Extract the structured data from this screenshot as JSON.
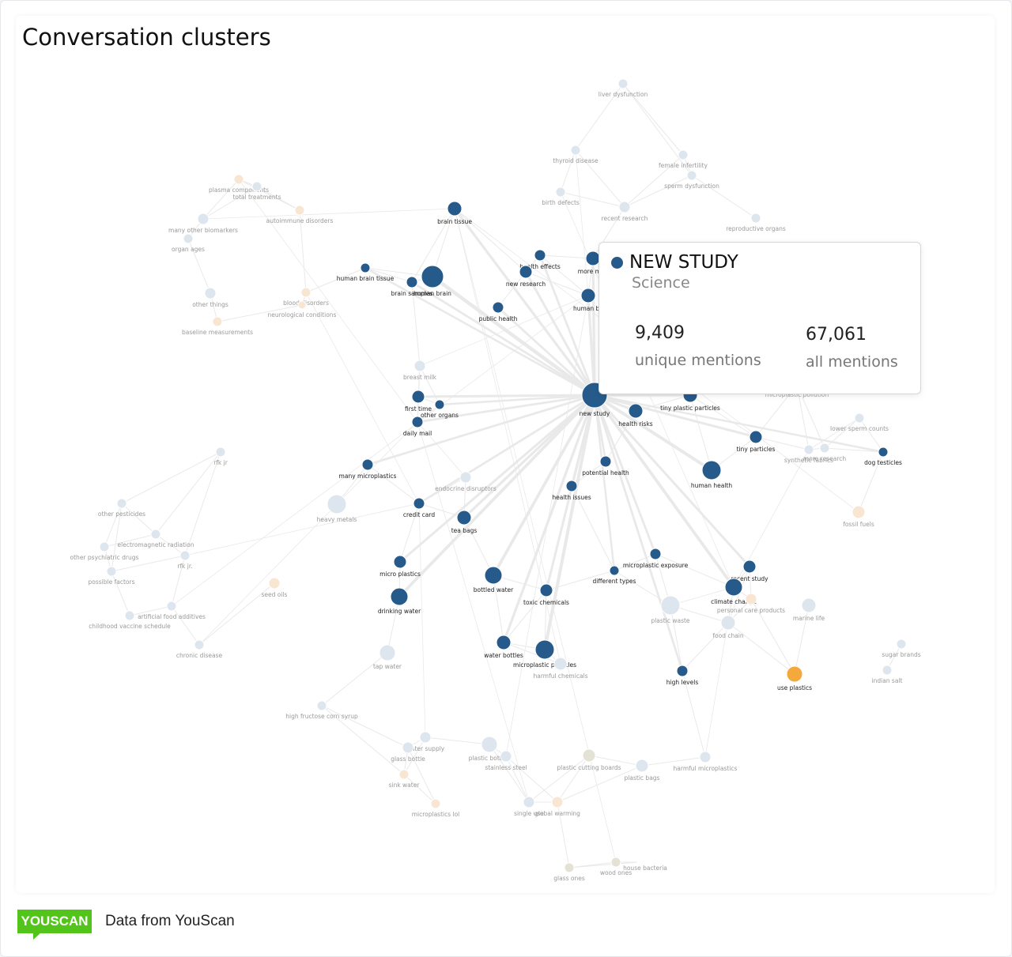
{
  "header": {
    "title": "Conversation clusters"
  },
  "nodes": [
    {
      "label": "brain tissue"
    },
    {
      "label": "human brain tissue"
    },
    {
      "label": "human brain"
    },
    {
      "label": "brain samples"
    },
    {
      "label": "health effects"
    },
    {
      "label": "new research"
    },
    {
      "label": "more micr"
    },
    {
      "label": "human bp"
    },
    {
      "label": "public health"
    },
    {
      "label": "new study"
    },
    {
      "label": "tiny plastic particles"
    },
    {
      "label": "health risks"
    },
    {
      "label": "first time"
    },
    {
      "label": "other organs"
    },
    {
      "label": "daily mail"
    },
    {
      "label": "tiny particles"
    },
    {
      "label": "dog testicles"
    },
    {
      "label": "human health"
    },
    {
      "label": "potential health"
    },
    {
      "label": "many microplastics"
    },
    {
      "label": "health issues"
    },
    {
      "label": "credit card"
    },
    {
      "label": "tea bags"
    },
    {
      "label": "micro plastics"
    },
    {
      "label": "microplastic exposure"
    },
    {
      "label": "recent study"
    },
    {
      "label": "bottled water"
    },
    {
      "label": "different types"
    },
    {
      "label": "climate change"
    },
    {
      "label": "toxic chemicals"
    },
    {
      "label": "drinking water"
    },
    {
      "label": "water bottles"
    },
    {
      "label": "microplastic particles"
    },
    {
      "label": "high levels"
    },
    {
      "label": "use plastics"
    },
    {
      "label": "liver dysfunction"
    },
    {
      "label": "thyroid disease"
    },
    {
      "label": "female infertility"
    },
    {
      "label": "sperm dysfunction"
    },
    {
      "label": "birth defects"
    },
    {
      "label": "recent research"
    },
    {
      "label": "reproductive organs"
    },
    {
      "label": "plasma components"
    },
    {
      "label": "total treatments"
    },
    {
      "label": "autoimmune disorders"
    },
    {
      "label": "many other biomarkers"
    },
    {
      "label": "organ ages"
    },
    {
      "label": "other things"
    },
    {
      "label": "blood disorders"
    },
    {
      "label": "neurological conditions"
    },
    {
      "label": "baseline measurements"
    },
    {
      "label": "breast milk"
    },
    {
      "label": "microplastic pollution"
    },
    {
      "label": "lower sperm counts"
    },
    {
      "label": "synthetic fabrics"
    },
    {
      "label": "more research"
    },
    {
      "label": "rfk jr"
    },
    {
      "label": "endocrine disruptors"
    },
    {
      "label": "other pesticides"
    },
    {
      "label": "heavy metals"
    },
    {
      "label": "fossil fuels"
    },
    {
      "label": "electromagnetic radiation"
    },
    {
      "label": "other psychiatric drugs"
    },
    {
      "label": "rfk jr."
    },
    {
      "label": "possible factors"
    },
    {
      "label": "seed oils"
    },
    {
      "label": "artificial food additives"
    },
    {
      "label": "childhood vaccine schedule"
    },
    {
      "label": "personal care products"
    },
    {
      "label": "plastic waste"
    },
    {
      "label": "marine life"
    },
    {
      "label": "food chain"
    },
    {
      "label": "chronic disease"
    },
    {
      "label": "sugar brands"
    },
    {
      "label": "tap water"
    },
    {
      "label": "harmful chemicals"
    },
    {
      "label": "indian salt"
    },
    {
      "label": "high fructose corn syrup"
    },
    {
      "label": "water supply"
    },
    {
      "label": "glass bottle"
    },
    {
      "label": "plastic bottles"
    },
    {
      "label": "stainless steel"
    },
    {
      "label": "plastic cutting boards"
    },
    {
      "label": "plastic bags"
    },
    {
      "label": "harmful microplastics"
    },
    {
      "label": "sink water"
    },
    {
      "label": "microplastics lol"
    },
    {
      "label": "single use"
    },
    {
      "label": "global warming"
    },
    {
      "label": "glass ones"
    },
    {
      "label": "wood ones"
    },
    {
      "label": "house bacteria"
    }
  ],
  "tooltip": {
    "title": "NEW STUDY",
    "subtitle": "Science",
    "stats": [
      {
        "value": "9,409",
        "label": "unique mentions"
      },
      {
        "value": "67,061",
        "label": "all mentions"
      }
    ]
  },
  "footer": {
    "logo": "YOUSCAN",
    "source": "Data from YouScan"
  }
}
